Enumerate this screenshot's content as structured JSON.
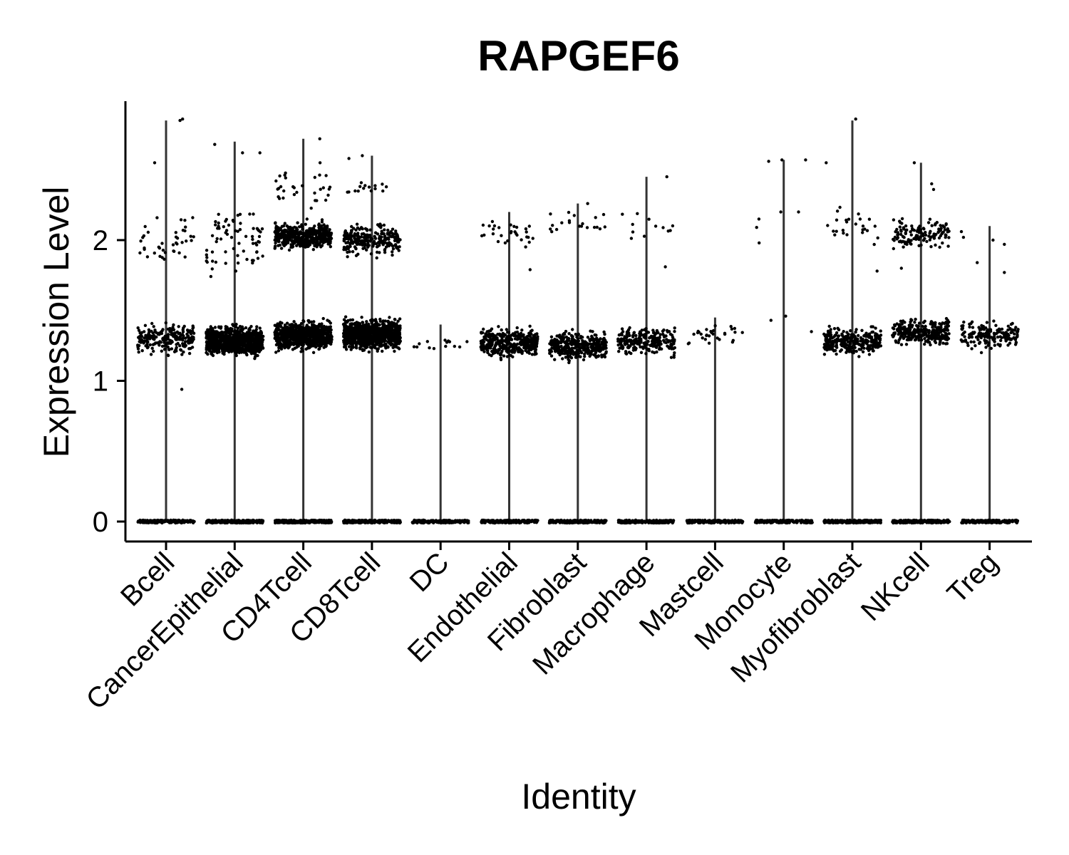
{
  "chart_data": {
    "type": "scatter",
    "title": "RAPGEF6",
    "xlabel": "Identity",
    "ylabel": "Expression Level",
    "ylim": [
      -0.14,
      2.98
    ],
    "yticks": [
      0,
      1,
      2
    ],
    "grid": false,
    "legend": "none",
    "categories": [
      "Bcell",
      "CancerEpithelial",
      "CD4Tcell",
      "CD8Tcell",
      "DC",
      "Endothelial",
      "Fibroblast",
      "Macrophage",
      "Mastcell",
      "Monocyte",
      "Myofibroblast",
      "NKcell",
      "Treg"
    ],
    "series": [
      {
        "category": "Bcell",
        "violin_max": 2.85,
        "clusters": [
          {
            "level": 0,
            "n": 160
          },
          {
            "level": 1.3,
            "spread": 0.14,
            "n": 230
          },
          {
            "level": 2.0,
            "spread": 0.25,
            "n": 40
          }
        ],
        "outliers": [
          0.94,
          2.55,
          2.86,
          2.85
        ]
      },
      {
        "category": "CancerEpithelial",
        "violin_max": 2.7,
        "clusters": [
          {
            "level": 0,
            "n": 260
          },
          {
            "level": 1.28,
            "spread": 0.14,
            "n": 900
          },
          {
            "level": 2.0,
            "spread": 0.35,
            "n": 70
          }
        ],
        "outliers": [
          2.68,
          2.62,
          2.62
        ]
      },
      {
        "category": "CD4Tcell",
        "violin_max": 2.72,
        "clusters": [
          {
            "level": 0,
            "n": 260
          },
          {
            "level": 1.32,
            "spread": 0.13,
            "n": 850
          },
          {
            "level": 2.03,
            "spread": 0.13,
            "n": 450
          },
          {
            "level": 2.35,
            "spread": 0.2,
            "n": 30
          }
        ],
        "outliers": [
          2.72,
          2.55
        ]
      },
      {
        "category": "CD8Tcell",
        "violin_max": 2.6,
        "clusters": [
          {
            "level": 0,
            "n": 260
          },
          {
            "level": 1.33,
            "spread": 0.14,
            "n": 950
          },
          {
            "level": 2.0,
            "spread": 0.15,
            "n": 250
          },
          {
            "level": 2.38,
            "spread": 0.06,
            "n": 15
          }
        ],
        "outliers": [
          2.6,
          2.58
        ]
      },
      {
        "category": "DC",
        "violin_max": 1.4,
        "clusters": [
          {
            "level": 0,
            "n": 160
          },
          {
            "level": 1.26,
            "spread": 0.06,
            "n": 14
          }
        ],
        "outliers": []
      },
      {
        "category": "Endothelial",
        "violin_max": 2.2,
        "clusters": [
          {
            "level": 0,
            "n": 220
          },
          {
            "level": 1.27,
            "spread": 0.13,
            "n": 400
          },
          {
            "level": 2.05,
            "spread": 0.12,
            "n": 30
          }
        ],
        "outliers": [
          1.79
        ]
      },
      {
        "category": "Fibroblast",
        "violin_max": 2.26,
        "clusters": [
          {
            "level": 0,
            "n": 220
          },
          {
            "level": 1.25,
            "spread": 0.13,
            "n": 380
          },
          {
            "level": 2.12,
            "spread": 0.12,
            "n": 20
          }
        ],
        "outliers": [
          2.26
        ]
      },
      {
        "category": "Macrophage",
        "violin_max": 2.45,
        "clusters": [
          {
            "level": 0,
            "n": 200
          },
          {
            "level": 1.28,
            "spread": 0.13,
            "n": 230
          },
          {
            "level": 2.1,
            "spread": 0.15,
            "n": 12
          }
        ],
        "outliers": [
          2.45,
          1.81
        ]
      },
      {
        "category": "Mastcell",
        "violin_max": 1.45,
        "clusters": [
          {
            "level": 0,
            "n": 180
          },
          {
            "level": 1.32,
            "spread": 0.1,
            "n": 30
          }
        ],
        "outliers": []
      },
      {
        "category": "Monocyte",
        "violin_max": 2.57,
        "clusters": [
          {
            "level": 0,
            "n": 160
          }
        ],
        "outliers": [
          2.57,
          2.57,
          2.56,
          2.2,
          2.2,
          2.15,
          2.09,
          1.98,
          1.46,
          1.43,
          1.35
        ]
      },
      {
        "category": "Myofibroblast",
        "violin_max": 2.85,
        "clusters": [
          {
            "level": 0,
            "n": 220
          },
          {
            "level": 1.28,
            "spread": 0.13,
            "n": 300
          },
          {
            "level": 2.1,
            "spread": 0.2,
            "n": 25
          }
        ],
        "outliers": [
          2.86,
          2.55,
          1.78
        ]
      },
      {
        "category": "NKcell",
        "violin_max": 2.55,
        "clusters": [
          {
            "level": 0,
            "n": 220
          },
          {
            "level": 1.35,
            "spread": 0.12,
            "n": 300
          },
          {
            "level": 2.05,
            "spread": 0.13,
            "n": 130
          }
        ],
        "outliers": [
          2.55,
          2.4,
          2.36,
          1.8
        ]
      },
      {
        "category": "Treg",
        "violin_max": 2.1,
        "clusters": [
          {
            "level": 0,
            "n": 200
          },
          {
            "level": 1.32,
            "spread": 0.13,
            "n": 170
          }
        ],
        "outliers": [
          2.02,
          1.97,
          2.06,
          1.84,
          1.77,
          2.0
        ]
      }
    ]
  }
}
